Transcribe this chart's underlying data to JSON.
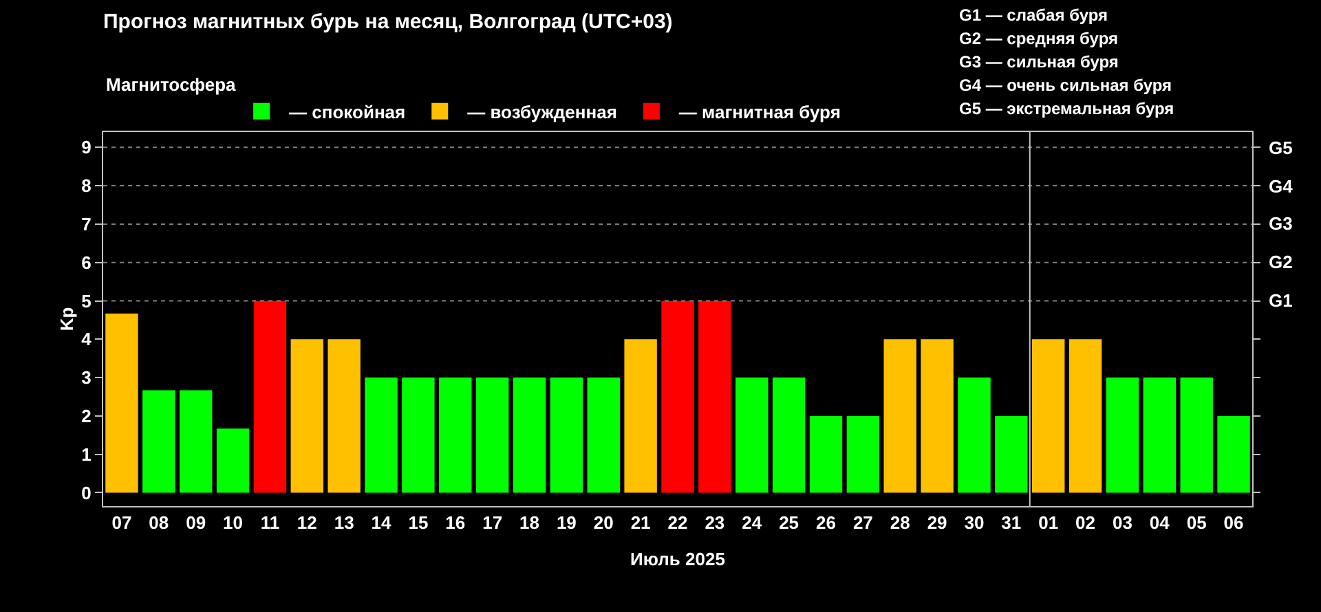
{
  "chart_data": {
    "type": "bar",
    "title": "Прогноз магнитных бурь на месяц, Волгоград (UTC+03)",
    "xlabel": "Июль 2025",
    "ylabel": "Kp",
    "legend_title": "Магнитосфера",
    "categories": [
      "07",
      "08",
      "09",
      "10",
      "11",
      "12",
      "13",
      "14",
      "15",
      "16",
      "17",
      "18",
      "19",
      "20",
      "21",
      "22",
      "23",
      "24",
      "25",
      "26",
      "27",
      "28",
      "29",
      "30",
      "31",
      "01",
      "02",
      "03",
      "04",
      "05",
      "06"
    ],
    "series": [
      {
        "name": "— спокойная",
        "color": "#00ff00",
        "values": [
          null,
          2.67,
          2.67,
          1.67,
          null,
          null,
          null,
          3,
          3,
          3,
          3,
          3,
          3,
          3,
          null,
          null,
          null,
          3,
          3,
          2,
          2,
          null,
          null,
          3,
          2,
          null,
          null,
          3,
          3,
          3,
          2
        ]
      },
      {
        "name": "— возбужденная",
        "color": "#ffc000",
        "values": [
          4.67,
          null,
          null,
          null,
          null,
          4,
          4,
          null,
          null,
          null,
          null,
          null,
          null,
          null,
          4,
          null,
          null,
          null,
          null,
          null,
          null,
          4,
          4,
          null,
          null,
          4,
          4,
          null,
          null,
          null,
          null
        ]
      },
      {
        "name": "— магнитная буря",
        "color": "#ff0000",
        "values": [
          null,
          null,
          null,
          null,
          5,
          null,
          null,
          null,
          null,
          null,
          null,
          null,
          null,
          null,
          null,
          5,
          5,
          null,
          null,
          null,
          null,
          null,
          null,
          null,
          null,
          null,
          null,
          null,
          null,
          null,
          null
        ]
      }
    ],
    "stacked": true,
    "ylim": [
      -0.35,
      9.4
    ],
    "yticks": [
      0,
      1,
      2,
      3,
      4,
      5,
      6,
      7,
      8,
      9
    ],
    "ref_lines": [
      {
        "axis": "y",
        "value": 5,
        "label": "G1",
        "color": "#808080",
        "line_style": "dotted"
      },
      {
        "axis": "y",
        "value": 6,
        "label": "G2",
        "color": "#808080",
        "line_style": "dotted"
      },
      {
        "axis": "y",
        "value": 7,
        "label": "G3",
        "color": "#808080",
        "line_style": "dotted"
      },
      {
        "axis": "y",
        "value": 8,
        "label": "G4",
        "color": "#808080",
        "line_style": "dotted"
      },
      {
        "axis": "y",
        "value": 9,
        "label": "G5",
        "color": "#808080",
        "line_style": "dotted"
      },
      {
        "axis": "x",
        "value": "01",
        "color": "#c0c0c0",
        "line_style": "solid"
      }
    ],
    "annotations": [
      "G1 — слабая буря",
      "G2 — средняя буря",
      "G3 — сильная буря",
      "G4 — очень сильная буря",
      "G5 — экстремальная буря"
    ],
    "grid": false,
    "legend": "top left"
  }
}
